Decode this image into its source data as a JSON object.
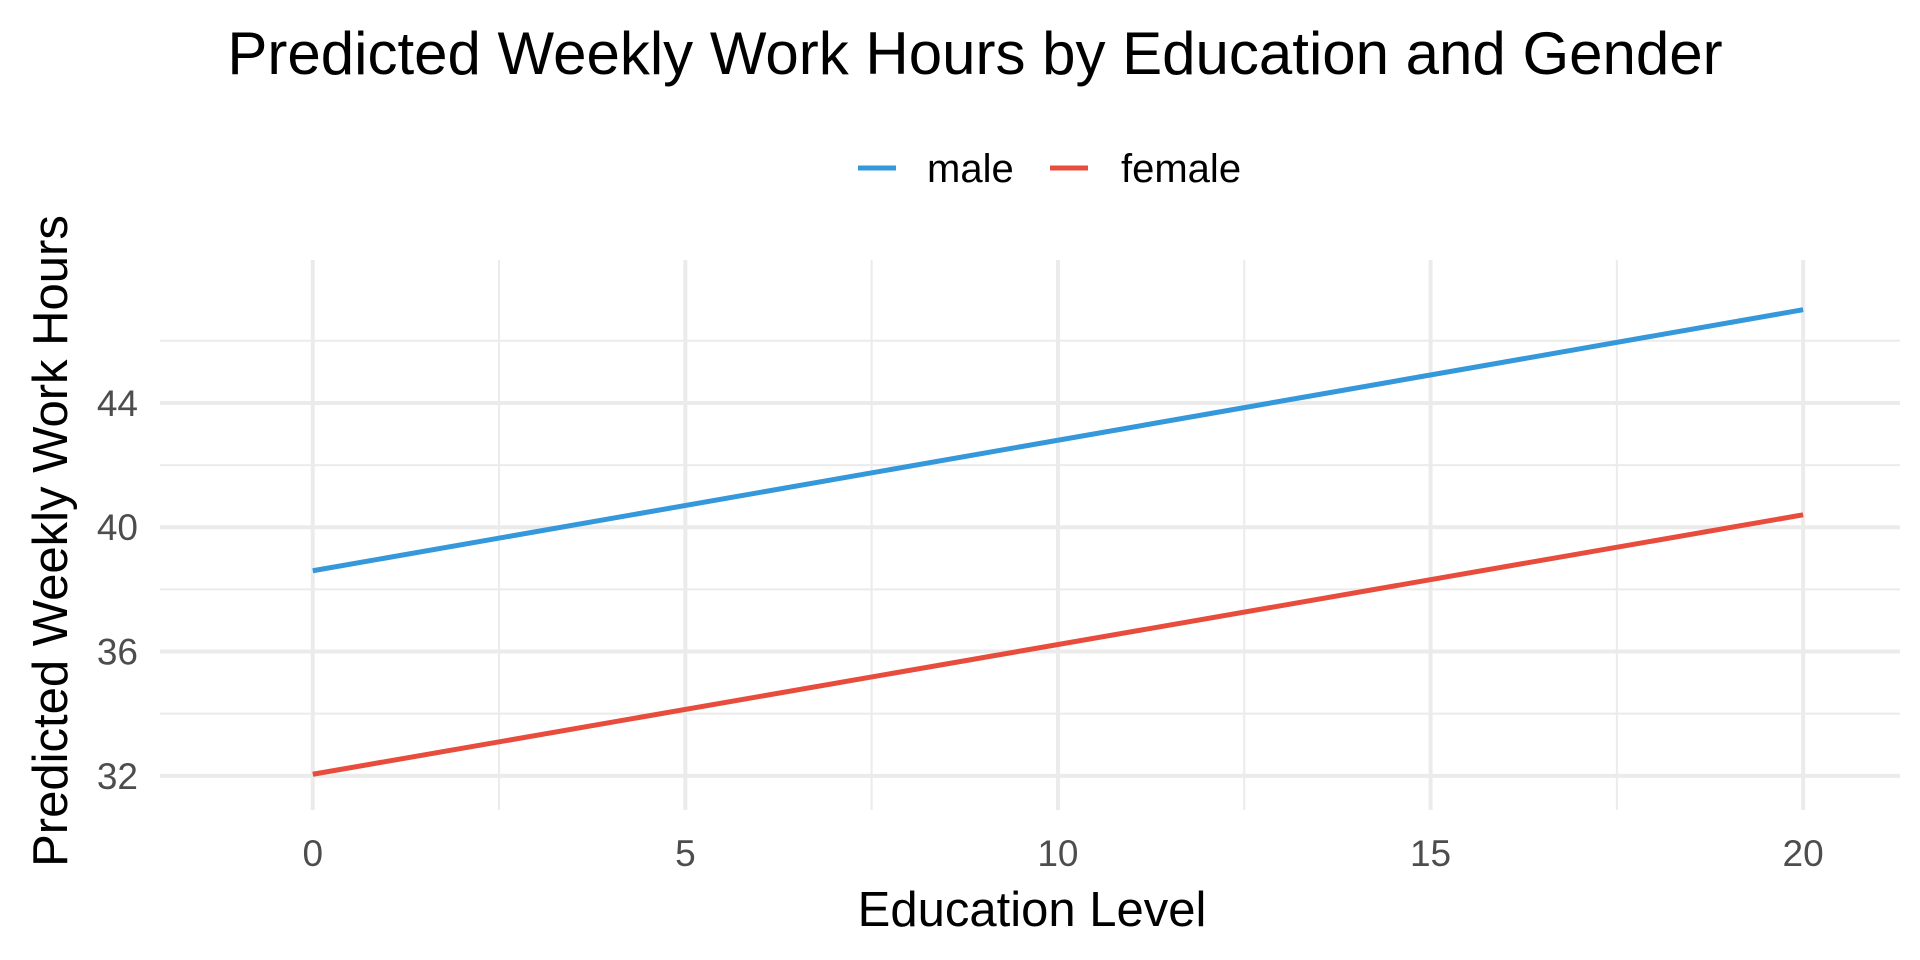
{
  "chart_data": {
    "type": "line",
    "title": "Predicted Weekly Work Hours by Education and Gender",
    "xlabel": "Education Level",
    "ylabel": "Predicted Weekly Work Hours",
    "x": [
      0,
      20
    ],
    "xlim": [
      -2.05,
      21.3
    ],
    "ylim": [
      30.9,
      48.6
    ],
    "xticks": [
      0,
      5,
      10,
      15,
      20
    ],
    "yticks": [
      32,
      36,
      40,
      44
    ],
    "grid": true,
    "legend_position": "top",
    "series": [
      {
        "name": "male",
        "color": "#3498db",
        "values": [
          38.6,
          47.0
        ]
      },
      {
        "name": "female",
        "color": "#e74c3c",
        "values": [
          32.05,
          40.4
        ]
      }
    ]
  }
}
